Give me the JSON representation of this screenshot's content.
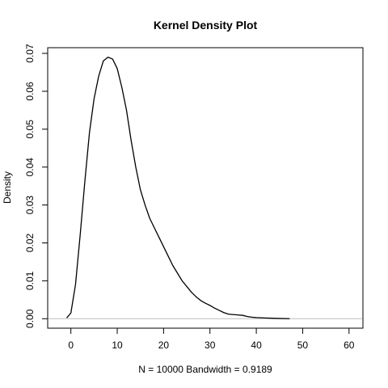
{
  "chart_data": {
    "type": "line",
    "title": "Kernel Density Plot",
    "xlabel": "N = 10000   Bandwidth = 0.9189",
    "ylabel": "Density",
    "xlim": [
      -5,
      63
    ],
    "ylim": [
      -0.0025,
      0.0715
    ],
    "x_ticks": [
      0,
      10,
      20,
      30,
      40,
      50,
      60
    ],
    "y_ticks": [
      0.0,
      0.01,
      0.02,
      0.03,
      0.04,
      0.05,
      0.06,
      0.07
    ],
    "x_tick_labels": [
      "0",
      "10",
      "20",
      "30",
      "40",
      "50",
      "60"
    ],
    "y_tick_labels": [
      "0.00",
      "0.01",
      "0.02",
      "0.03",
      "0.04",
      "0.05",
      "0.06",
      "0.07"
    ],
    "grid": false,
    "zero_line_color": "#bebebe",
    "line_color": "#000000",
    "series": [
      {
        "x": [
          -0.9,
          0,
          1,
          2,
          3,
          4,
          5,
          6,
          7,
          8,
          9,
          10,
          11,
          12,
          13,
          14,
          15,
          16,
          17,
          18,
          19,
          20,
          21,
          22,
          23,
          24,
          25,
          26,
          27,
          28,
          29,
          30,
          31,
          32,
          33,
          34,
          35,
          36,
          37,
          38,
          39,
          40,
          42,
          44,
          47.2
        ],
        "y": [
          0.0002,
          0.0015,
          0.009,
          0.022,
          0.036,
          0.049,
          0.058,
          0.064,
          0.068,
          0.069,
          0.0685,
          0.066,
          0.061,
          0.055,
          0.047,
          0.04,
          0.034,
          0.03,
          0.0265,
          0.024,
          0.0215,
          0.019,
          0.0165,
          0.014,
          0.012,
          0.01,
          0.0085,
          0.007,
          0.0058,
          0.0048,
          0.0041,
          0.0035,
          0.0028,
          0.0022,
          0.0016,
          0.0012,
          0.0011,
          0.001,
          0.0009,
          0.0006,
          0.0004,
          0.0003,
          0.0002,
          0.0001,
          0.0
        ]
      }
    ]
  }
}
